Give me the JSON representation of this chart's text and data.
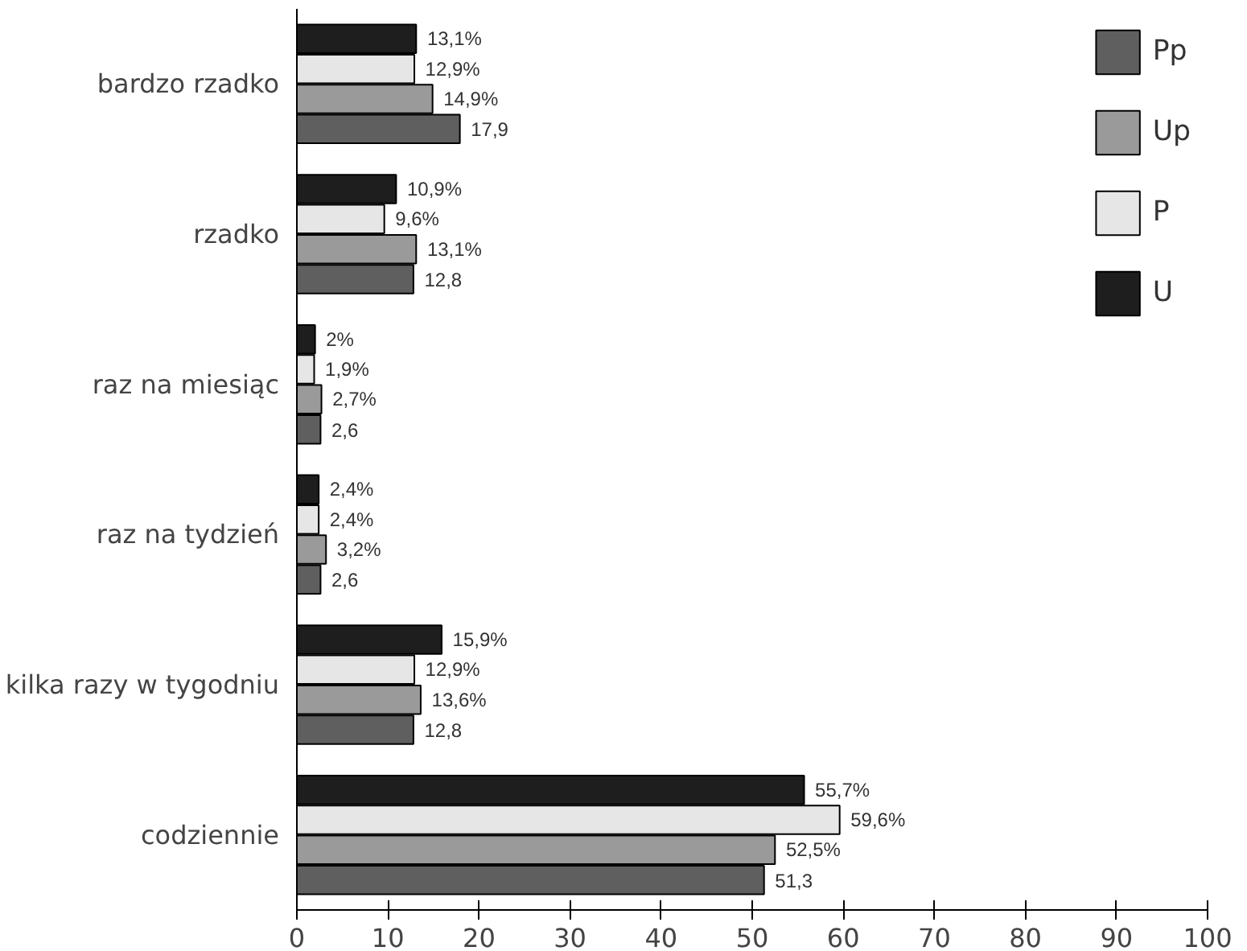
{
  "chart_data": {
    "type": "bar",
    "orientation": "horizontal",
    "categories": [
      "bardzo rzadko",
      "rzadko",
      "raz na miesiąc",
      "raz na tydzień",
      "kilka razy w tygodniu",
      "codziennie"
    ],
    "series": [
      {
        "name": "Pp",
        "color": "#5f5f5f",
        "values": [
          17.9,
          12.8,
          2.6,
          2.6,
          12.8,
          51.3
        ],
        "value_labels": [
          "17,9",
          "12,8",
          "2,6",
          "2,6",
          "12,8",
          "51,3"
        ]
      },
      {
        "name": "Up",
        "color": "#9a9a9a",
        "values": [
          14.9,
          13.1,
          2.7,
          3.2,
          13.6,
          52.5
        ],
        "value_labels": [
          "14,9%",
          "13,1%",
          "2,7%",
          "3,2%",
          "13,6%",
          "52,5%"
        ]
      },
      {
        "name": "P",
        "color": "#e6e6e6",
        "values": [
          12.9,
          9.6,
          1.9,
          2.4,
          12.9,
          59.6
        ],
        "value_labels": [
          "12,9%",
          "9,6%",
          "1,9%",
          "2,4%",
          "12,9%",
          "59,6%"
        ]
      },
      {
        "name": "U",
        "color": "#1e1e1e",
        "values": [
          13.1,
          10.9,
          2,
          2.4,
          15.9,
          55.7
        ],
        "value_labels": [
          "13,1%",
          "10,9%",
          "2%",
          "2,4%",
          "15,9%",
          "55,7%"
        ]
      }
    ],
    "xlim": [
      0,
      100
    ],
    "xticks": [
      0,
      10,
      20,
      30,
      40,
      50,
      60,
      70,
      80,
      90,
      100
    ],
    "grid": false,
    "legend": "right"
  }
}
